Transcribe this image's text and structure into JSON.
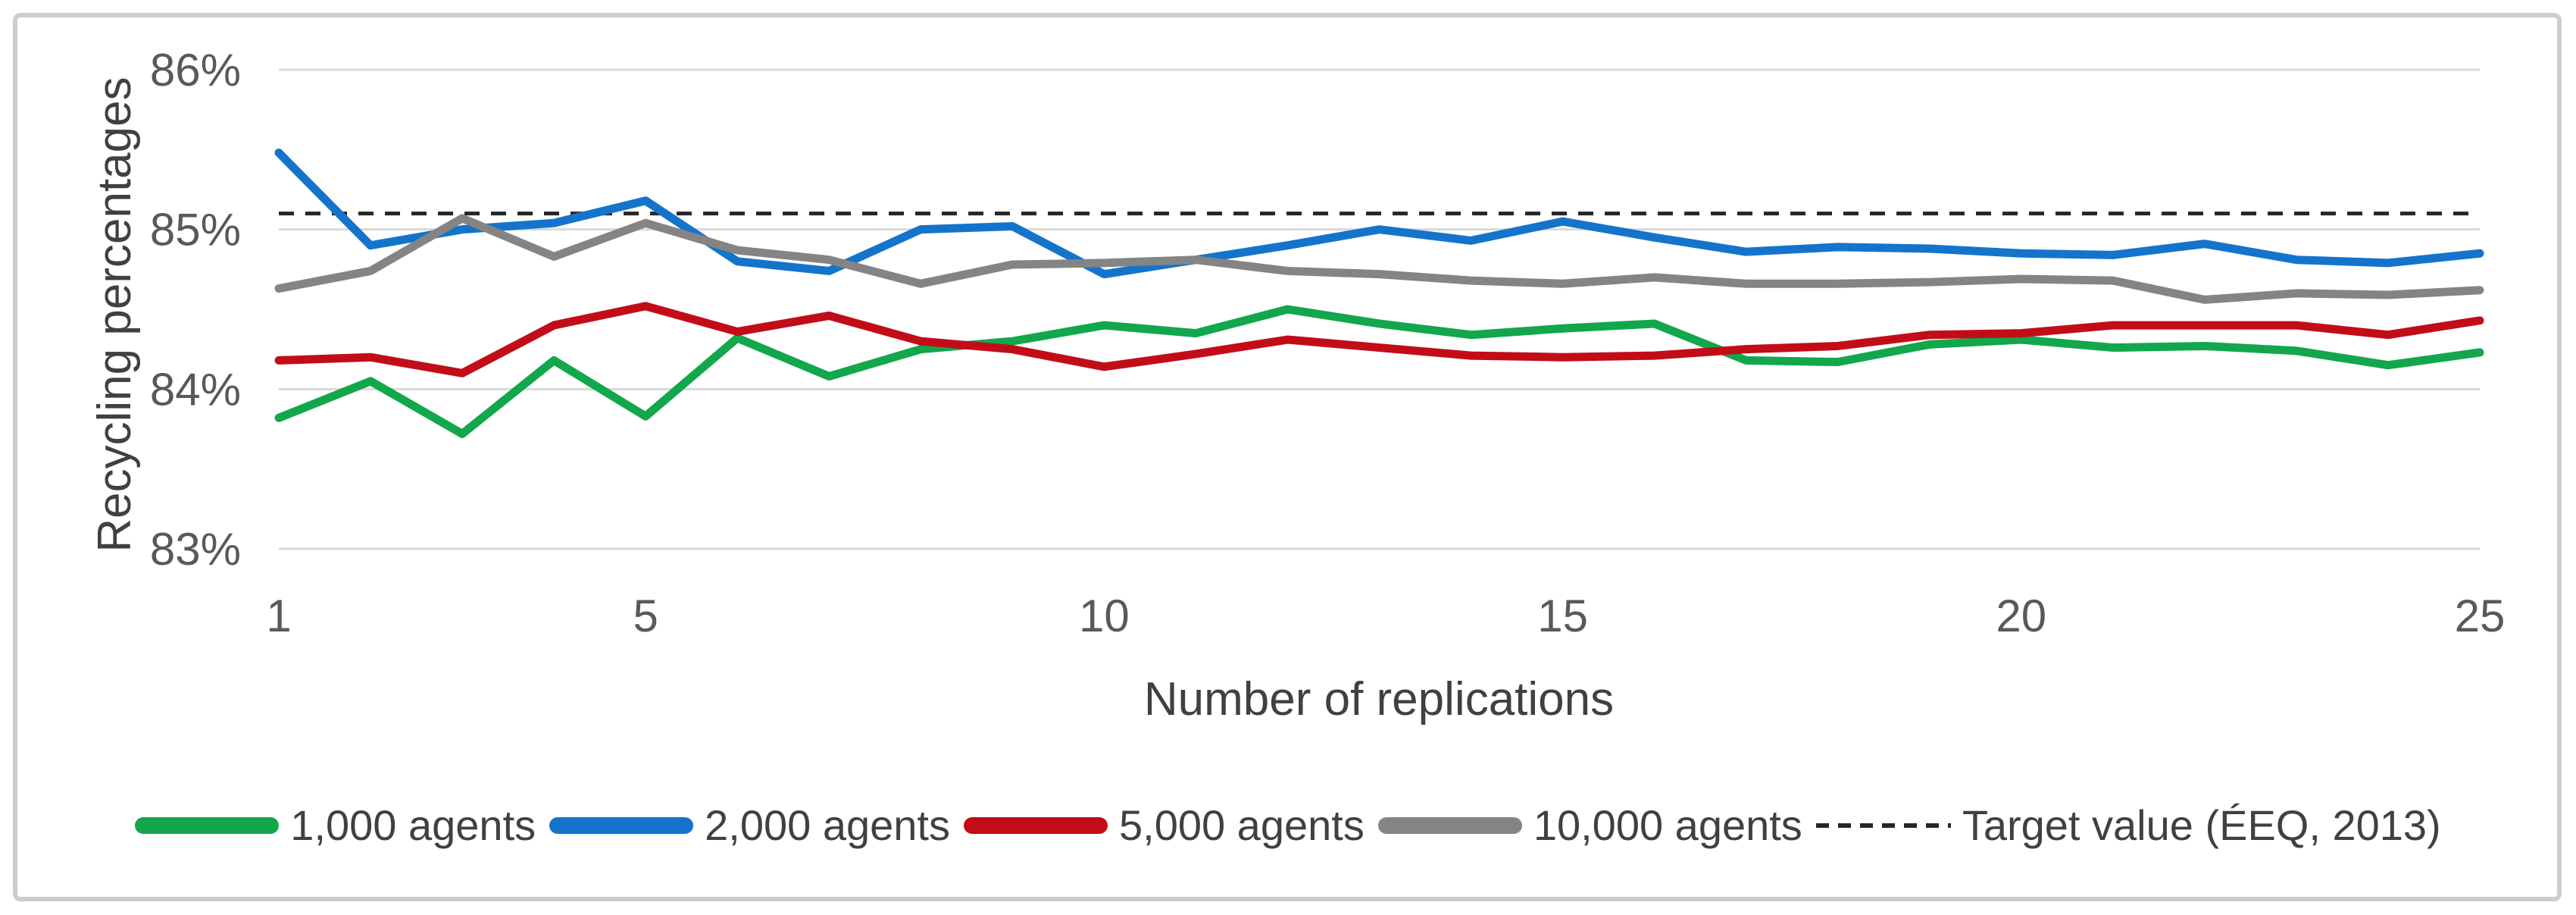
{
  "chart_data": {
    "type": "line",
    "title": "",
    "xlabel": "Number of replications",
    "ylabel": "Recycling percentages",
    "x": [
      1,
      2,
      3,
      4,
      5,
      6,
      7,
      8,
      9,
      10,
      11,
      12,
      13,
      14,
      15,
      16,
      17,
      18,
      19,
      20,
      21,
      22,
      23,
      24,
      25
    ],
    "x_ticks": [
      1,
      5,
      10,
      15,
      20,
      25
    ],
    "y_ticks": [
      86,
      85,
      84,
      83
    ],
    "y_tick_suffix": "%",
    "ylim": [
      83,
      86
    ],
    "grid": true,
    "legend_position": "bottom",
    "series": [
      {
        "name": "1,000 agents",
        "color": "#12a74b",
        "values": [
          83.82,
          84.05,
          83.72,
          84.18,
          83.83,
          84.32,
          84.08,
          84.25,
          84.3,
          84.4,
          84.35,
          84.5,
          84.41,
          84.34,
          84.38,
          84.41,
          84.18,
          84.17,
          84.28,
          84.31,
          84.26,
          84.27,
          84.24,
          84.15,
          84.23
        ]
      },
      {
        "name": "2,000 agents",
        "color": "#1474cb",
        "values": [
          85.48,
          84.9,
          85.0,
          85.04,
          85.18,
          84.8,
          84.74,
          85.0,
          85.02,
          84.72,
          84.81,
          84.9,
          85.0,
          84.93,
          85.05,
          84.95,
          84.86,
          84.89,
          84.88,
          84.85,
          84.84,
          84.91,
          84.81,
          84.79,
          84.85
        ]
      },
      {
        "name": "5,000 agents",
        "color": "#c20d19",
        "values": [
          84.18,
          84.2,
          84.1,
          84.4,
          84.52,
          84.36,
          84.46,
          84.3,
          84.25,
          84.14,
          84.22,
          84.31,
          84.26,
          84.21,
          84.2,
          84.21,
          84.25,
          84.27,
          84.34,
          84.35,
          84.4,
          84.4,
          84.4,
          84.34,
          84.43
        ]
      },
      {
        "name": "10,000 agents",
        "color": "#848484",
        "values": [
          84.63,
          84.74,
          85.07,
          84.83,
          85.04,
          84.87,
          84.81,
          84.66,
          84.78,
          84.79,
          84.81,
          84.74,
          84.72,
          84.68,
          84.66,
          84.7,
          84.66,
          84.66,
          84.67,
          84.69,
          84.68,
          84.56,
          84.6,
          84.59,
          84.62
        ]
      }
    ],
    "target_line": {
      "name": "Target value (ÉEQ, 2013)",
      "value": 85.1,
      "color": "#262626",
      "style": "dashed"
    },
    "colors": {
      "grid": "#d9d9d9",
      "frame_border": "#cdcdcd",
      "tick_text": "#595959",
      "title_text": "#404040",
      "background": "#ffffff"
    }
  }
}
